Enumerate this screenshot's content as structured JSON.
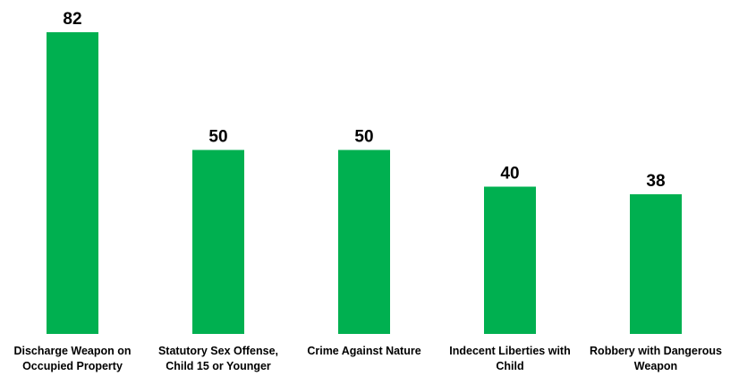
{
  "chart_data": {
    "type": "bar",
    "title": "",
    "xlabel": "",
    "ylabel": "",
    "categories": [
      [
        "Discharge Weapon on",
        "Occupied Property"
      ],
      [
        "Statutory Sex Offense,",
        "Child 15 or Younger"
      ],
      [
        "Crime Against Nature"
      ],
      [
        "Indecent Liberties with",
        "Child"
      ],
      [
        "Robbery with Dangerous",
        "Weapon"
      ]
    ],
    "values": [
      82,
      50,
      50,
      40,
      38
    ],
    "ylim": [
      0,
      82
    ],
    "grid": false,
    "legend": "none",
    "bar_color": "#00b050"
  }
}
